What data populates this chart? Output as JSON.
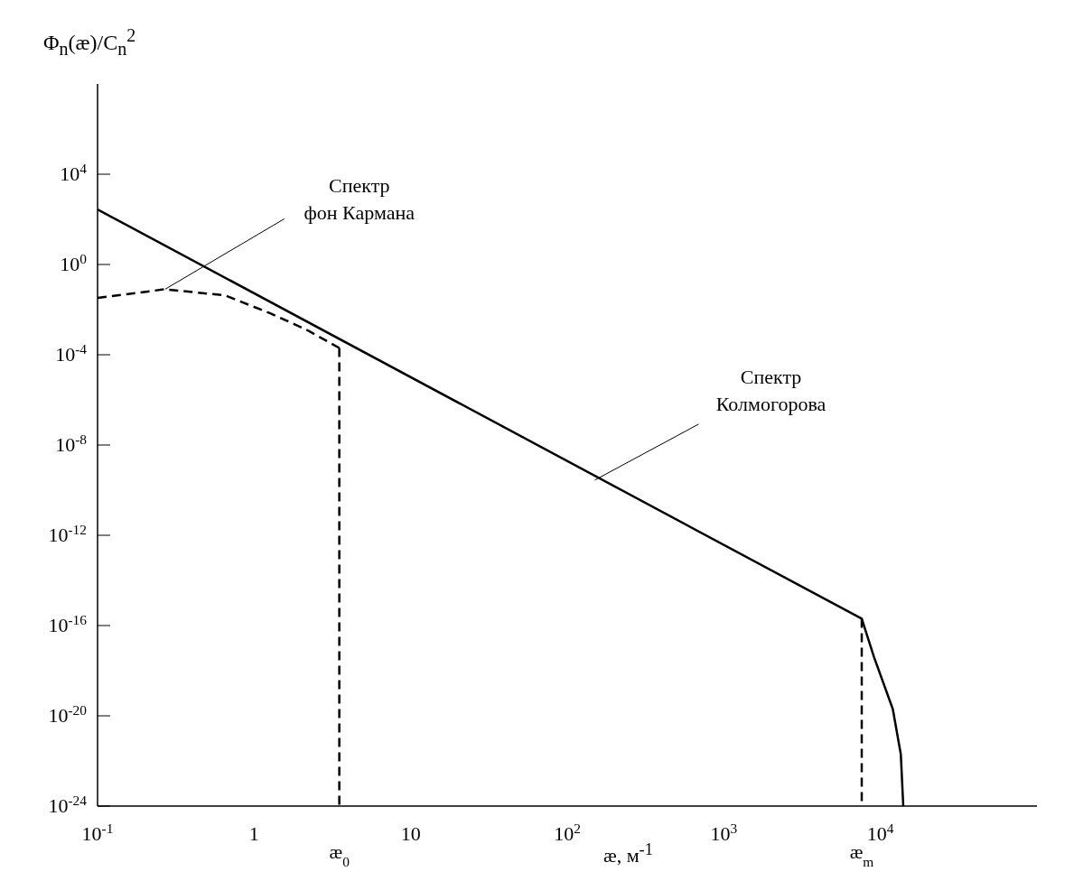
{
  "chart_data": {
    "type": "line",
    "log": "xy",
    "ylabel": "Φ$_{n}$(æ)/C$_{n}$$^{2}$",
    "annotations": [
      {
        "text": "Спектр фон Кармана",
        "x": 0.27,
        "y": 0.08
      },
      {
        "text": "Спектр Колмогорова",
        "x": 150,
        "y": 2.8e-10
      },
      {
        "text": "æ$_{0}$",
        "x": 3.5,
        "y": 1e-24
      },
      {
        "text": "æ$_{m}$",
        "x": 7600,
        "y": 1e-24
      }
    ],
    "xlabel": "æ, м$^{-1}$",
    "xlim": [
      0.1,
      100000
    ],
    "xticks": [
      {
        "value": 0.1,
        "label": "10$^{-1}$"
      },
      1,
      10,
      {
        "value": 100,
        "label": "10$^{2}$"
      },
      {
        "value": 1000,
        "label": "10$^{3}$"
      },
      {
        "value": 10000,
        "label": "10$^{4}$"
      }
    ],
    "ylim": [
      1e-24,
      100000000
    ],
    "yticks": [
      {
        "value": 1e-24,
        "label": "10$^{-24}$"
      },
      {
        "value": 1e-20,
        "label": "10$^{-20}$"
      },
      {
        "value": 1e-16,
        "label": "10$^{-16}$"
      },
      {
        "value": 1e-12,
        "label": "10$^{-12}$"
      },
      {
        "value": 1e-08,
        "label": "10$^{-8}$"
      },
      {
        "value": 0.0001,
        "label": "10$^{-4}$"
      },
      {
        "value": 1,
        "label": "10$^{0}$"
      },
      {
        "value": 10000,
        "label": "10$^{4}$"
      }
    ],
    "series": [
      {
        "color": "#000000",
        "line_style": "solid",
        "x": [
          0.1,
          7600,
          9100,
          12000,
          13500,
          14000
        ],
        "values": [
          275,
          2e-16,
          4e-18,
          2e-20,
          2e-22,
          1e-24
        ]
      },
      {
        "color": "#000000",
        "line_style": "dashed",
        "x": [
          0.1,
          0.27,
          0.65,
          1.26,
          2.2,
          3.5
        ],
        "values": [
          0.033,
          0.08,
          0.043,
          0.007,
          0.0012,
          0.0002
        ]
      },
      {
        "color": "#000000",
        "line_style": "dashed",
        "x": [
          3.5,
          3.5
        ],
        "values": [
          0.0002,
          1e-24
        ]
      },
      {
        "color": "#000000",
        "line_style": "dashed",
        "x": [
          7600,
          7600
        ],
        "values": [
          2e-16,
          1e-24
        ]
      }
    ]
  }
}
